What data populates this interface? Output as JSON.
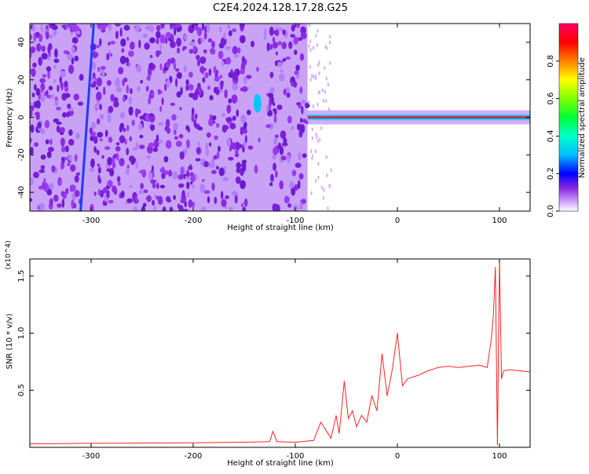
{
  "title": "C2E4.2024.128.17.28.G25",
  "chart_data": [
    {
      "type": "heatmap",
      "xlabel": "Height of straight line (km)",
      "ylabel": "Frequency (Hz)",
      "xlim": [
        -360,
        130
      ],
      "ylim": [
        -50,
        50
      ],
      "xticks": [
        -300,
        -200,
        -100,
        0,
        100
      ],
      "yticks": [
        -40,
        -20,
        0,
        20,
        40
      ],
      "colorbar": {
        "label": "Normalized spectral amplitude",
        "range": [
          0.0,
          1.0
        ],
        "ticks": [
          0.0,
          0.2,
          0.4,
          0.6,
          0.8
        ]
      },
      "features": [
        {
          "x_range": [
            -360,
            -88
          ],
          "description": "noise"
        },
        {
          "x_range": [
            -305,
            -295
          ],
          "y_range": [
            -50,
            48
          ],
          "description": "streak"
        },
        {
          "x_range": [
            -142,
            -132
          ],
          "y_range": [
            5,
            10
          ],
          "description": "blob"
        },
        {
          "x_range": [
            -88,
            130
          ],
          "y_center": 0,
          "description": "tone"
        }
      ]
    },
    {
      "type": "line",
      "xlabel": "Height of straight line (km)",
      "ylabel": "SNR (10 * v/v)",
      "y_multiplier": "(x10^4)",
      "xlim": [
        -360,
        130
      ],
      "ylim": [
        0,
        16500
      ],
      "xticks": [
        -300,
        -200,
        -100,
        0,
        100
      ],
      "yticks": [
        5000,
        10000,
        15000
      ],
      "ytick_labels": [
        "0.5",
        "1.0",
        "1.5"
      ],
      "series": [
        {
          "color": "#ff2222",
          "x": [
            -360,
            -300,
            -200,
            -150,
            -125,
            -122,
            -118,
            -100,
            -82,
            -75,
            -70,
            -65,
            -60,
            -57,
            -52,
            -48,
            -44,
            -40,
            -35,
            -30,
            -25,
            -20,
            -15,
            -10,
            -5,
            0,
            5,
            10,
            20,
            30,
            40,
            50,
            60,
            70,
            80,
            88,
            92,
            94,
            96,
            98,
            100,
            102,
            104,
            110,
            120,
            130
          ],
          "y": [
            300,
            350,
            400,
            450,
            500,
            1400,
            500,
            450,
            600,
            2200,
            1500,
            800,
            2800,
            1200,
            5800,
            2500,
            3200,
            1800,
            2800,
            2200,
            4500,
            3200,
            8200,
            4500,
            6800,
            10000,
            5400,
            6000,
            6300,
            6700,
            7000,
            7100,
            7000,
            7100,
            7200,
            7000,
            9500,
            11500,
            15800,
            200,
            16500,
            6000,
            6700,
            6800,
            6700,
            6600
          ]
        }
      ]
    }
  ]
}
